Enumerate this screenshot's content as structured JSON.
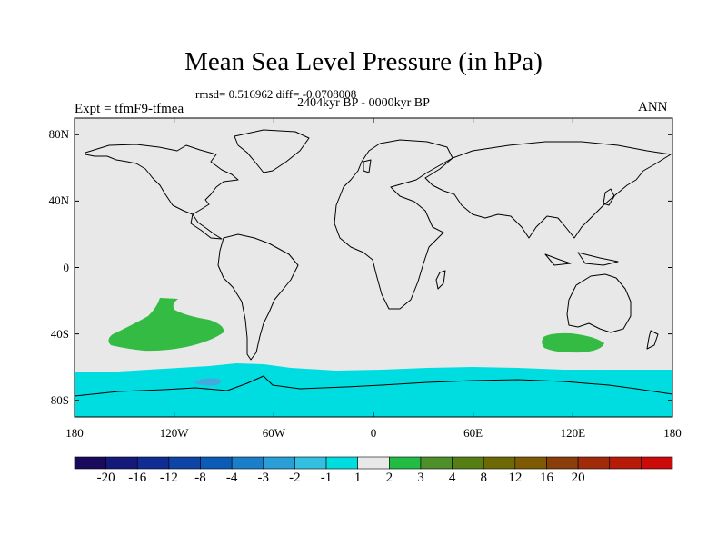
{
  "title": "Mean Sea Level Pressure (in hPa)",
  "stats_line": "rmsd= 0.516962 diff= -0.0708008",
  "period": "2404kyr BP - 0000kyr BP",
  "experiment": "Expt = tfmF9-tfmea",
  "season": "ANN",
  "map": {
    "projection": "cylindrical-equidistant",
    "lon_range": [
      -180,
      180
    ],
    "lat_range": [
      -90,
      90
    ],
    "y_axis_labels": [
      {
        "lat": 80,
        "label": "80N"
      },
      {
        "lat": 40,
        "label": "40N"
      },
      {
        "lat": 0,
        "label": "0"
      },
      {
        "lat": -40,
        "label": "40S"
      },
      {
        "lat": -80,
        "label": "80S"
      }
    ],
    "x_axis_labels": [
      {
        "lon": -180,
        "label": "180"
      },
      {
        "lon": -120,
        "label": "120W"
      },
      {
        "lon": -60,
        "label": "60W"
      },
      {
        "lon": 0,
        "label": "0"
      },
      {
        "lon": 60,
        "label": "60E"
      },
      {
        "lon": 120,
        "label": "120E"
      },
      {
        "lon": 180,
        "label": "180"
      }
    ],
    "background_color": "#e8e8e8",
    "anomaly_regions": [
      {
        "name": "south-pacific-positive",
        "range": "1 to 2",
        "color": "#33bb44"
      },
      {
        "name": "southern-indian-positive",
        "range": "1 to 2",
        "color": "#33bb44"
      },
      {
        "name": "southern-ocean-negative",
        "range": "-2 to -1",
        "color": "#00dde0"
      },
      {
        "name": "amundsen-sea-negative",
        "range": "-3 to -2",
        "color": "#44aadd"
      }
    ]
  },
  "colorbar": {
    "colors": [
      "#1a0a5e",
      "#141a7a",
      "#112c94",
      "#0e44a6",
      "#0c5cb6",
      "#1a7fc8",
      "#2a9ed6",
      "#33bfe0",
      "#00dde0",
      "#e8e8e8",
      "#22bb44",
      "#4e8f2a",
      "#557f15",
      "#6d6a05",
      "#7e5a04",
      "#8a3e0a",
      "#a12a0a",
      "#b81a0a",
      "#cc0a0a"
    ],
    "labels": [
      "-20",
      "-16",
      "-12",
      "-8",
      "-4",
      "-3",
      "-2",
      "-1",
      "1",
      "2",
      "3",
      "4",
      "8",
      "12",
      "16",
      "20"
    ]
  }
}
